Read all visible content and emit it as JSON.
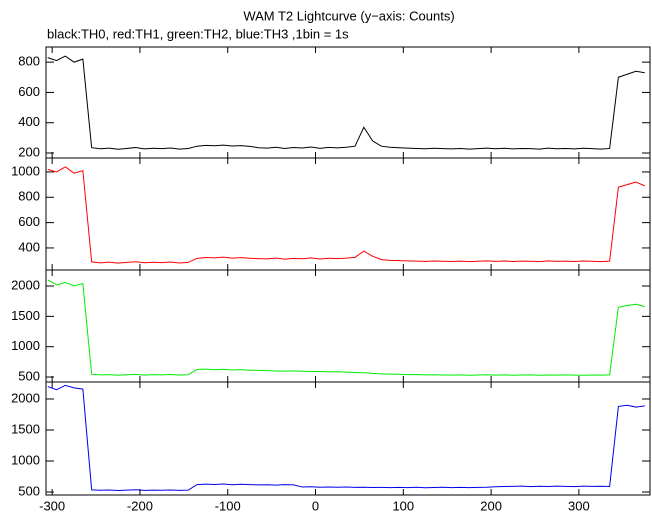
{
  "chart_data": [
    {
      "type": "line",
      "title": "WAM T2 Lightcurve (y−axis: Counts)",
      "subtitle": "black:TH0, red:TH1, green:TH2, blue:TH3 ,1bin = 1s",
      "x": [
        -305,
        -295,
        -285,
        -275,
        -265,
        -255,
        -245,
        -235,
        -225,
        -215,
        -205,
        -195,
        -185,
        -175,
        -165,
        -155,
        -145,
        -135,
        -125,
        -115,
        -105,
        -95,
        -85,
        -75,
        -65,
        -55,
        -45,
        -35,
        -25,
        -15,
        -5,
        5,
        15,
        25,
        35,
        45,
        55,
        65,
        75,
        85,
        95,
        105,
        115,
        125,
        135,
        145,
        155,
        165,
        175,
        185,
        195,
        205,
        215,
        225,
        235,
        245,
        255,
        265,
        275,
        285,
        295,
        305,
        315,
        325,
        335,
        345,
        355,
        365,
        375
      ],
      "values": [
        830,
        810,
        840,
        800,
        820,
        235,
        228,
        232,
        225,
        230,
        236,
        227,
        231,
        229,
        233,
        226,
        230,
        245,
        250,
        248,
        252,
        246,
        249,
        244,
        235,
        232,
        238,
        230,
        236,
        233,
        240,
        231,
        237,
        234,
        238,
        245,
        370,
        280,
        245,
        238,
        235,
        232,
        230,
        228,
        231,
        229,
        227,
        230,
        226,
        229,
        232,
        228,
        231,
        227,
        230,
        229,
        226,
        232,
        228,
        230,
        227,
        231,
        229,
        226,
        230,
        700,
        720,
        740,
        730
      ],
      "color": "#000000",
      "xlim": [
        -307,
        381
      ],
      "ylim": [
        167,
        900
      ],
      "yticks": [
        200,
        400,
        600,
        800
      ]
    },
    {
      "type": "line",
      "x": [
        -305,
        -295,
        -285,
        -275,
        -265,
        -255,
        -245,
        -235,
        -225,
        -215,
        -205,
        -195,
        -185,
        -175,
        -165,
        -155,
        -145,
        -135,
        -125,
        -115,
        -105,
        -95,
        -85,
        -75,
        -65,
        -55,
        -45,
        -35,
        -25,
        -15,
        -5,
        5,
        15,
        25,
        35,
        45,
        55,
        65,
        75,
        85,
        95,
        105,
        115,
        125,
        135,
        145,
        155,
        165,
        175,
        185,
        195,
        205,
        215,
        225,
        235,
        245,
        255,
        265,
        275,
        285,
        295,
        305,
        315,
        325,
        335,
        345,
        355,
        365,
        375
      ],
      "values": [
        1020,
        1000,
        1040,
        990,
        1010,
        290,
        282,
        288,
        280,
        286,
        291,
        283,
        287,
        284,
        289,
        281,
        286,
        318,
        325,
        322,
        328,
        320,
        324,
        319,
        316,
        314,
        320,
        312,
        318,
        315,
        322,
        313,
        319,
        316,
        320,
        326,
        375,
        335,
        308,
        302,
        300,
        298,
        296,
        294,
        297,
        295,
        293,
        296,
        292,
        295,
        298,
        294,
        297,
        293,
        296,
        295,
        292,
        298,
        294,
        296,
        293,
        297,
        295,
        292,
        296,
        880,
        900,
        920,
        890
      ],
      "color": "#ff0000",
      "xlim": [
        -307,
        381
      ],
      "ylim": [
        226,
        1110
      ],
      "yticks": [
        400,
        600,
        800,
        1000
      ]
    },
    {
      "type": "line",
      "x": [
        -305,
        -295,
        -285,
        -275,
        -265,
        -255,
        -245,
        -235,
        -225,
        -215,
        -205,
        -195,
        -185,
        -175,
        -165,
        -155,
        -145,
        -135,
        -125,
        -115,
        -105,
        -95,
        -85,
        -75,
        -65,
        -55,
        -45,
        -35,
        -25,
        -15,
        -5,
        5,
        15,
        25,
        35,
        45,
        55,
        65,
        75,
        85,
        95,
        105,
        115,
        125,
        135,
        145,
        155,
        165,
        175,
        185,
        195,
        205,
        215,
        225,
        235,
        245,
        255,
        265,
        275,
        285,
        295,
        305,
        315,
        325,
        335,
        345,
        355,
        365,
        375
      ],
      "values": [
        2100,
        2020,
        2060,
        2000,
        2040,
        545,
        535,
        540,
        530,
        538,
        544,
        532,
        539,
        536,
        541,
        533,
        538,
        625,
        630,
        620,
        628,
        615,
        622,
        612,
        610,
        605,
        600,
        598,
        602,
        595,
        590,
        592,
        585,
        588,
        580,
        575,
        570,
        560,
        552,
        548,
        545,
        540,
        542,
        536,
        538,
        534,
        532,
        536,
        530,
        534,
        537,
        531,
        535,
        530,
        533,
        536,
        530,
        534,
        531,
        535,
        532,
        529,
        534,
        531,
        535,
        1650,
        1680,
        1700,
        1660
      ],
      "color": "#00ee00",
      "xlim": [
        -307,
        381
      ],
      "ylim": [
        418,
        2264
      ],
      "yticks": [
        500,
        1000,
        1500,
        2000
      ]
    },
    {
      "type": "line",
      "x": [
        -305,
        -295,
        -285,
        -275,
        -265,
        -255,
        -245,
        -235,
        -225,
        -215,
        -205,
        -195,
        -185,
        -175,
        -165,
        -155,
        -145,
        -135,
        -125,
        -115,
        -105,
        -95,
        -85,
        -75,
        -65,
        -55,
        -45,
        -35,
        -25,
        -15,
        -5,
        5,
        15,
        25,
        35,
        45,
        55,
        65,
        75,
        85,
        95,
        105,
        115,
        125,
        135,
        145,
        155,
        165,
        175,
        185,
        195,
        205,
        215,
        225,
        235,
        245,
        255,
        265,
        275,
        285,
        295,
        305,
        315,
        325,
        335,
        345,
        355,
        365,
        375
      ],
      "values": [
        2200,
        2150,
        2220,
        2180,
        2160,
        535,
        528,
        532,
        525,
        530,
        536,
        527,
        531,
        529,
        533,
        526,
        530,
        620,
        628,
        622,
        630,
        618,
        625,
        620,
        615,
        618,
        612,
        620,
        616,
        580,
        585,
        578,
        582,
        576,
        580,
        575,
        578,
        572,
        575,
        570,
        574,
        571,
        576,
        569,
        573,
        577,
        570,
        574,
        571,
        575,
        578,
        585,
        590,
        592,
        596,
        588,
        594,
        590,
        595,
        592,
        588,
        596,
        591,
        594,
        590,
        1880,
        1900,
        1870,
        1890
      ],
      "color": "#0000ee",
      "xlim": [
        -307,
        381
      ],
      "ylim": [
        452,
        2274
      ],
      "yticks": [
        500,
        1000,
        1500,
        2000
      ],
      "xticks": [
        -300,
        -200,
        -100,
        0,
        100,
        200,
        300
      ]
    }
  ]
}
